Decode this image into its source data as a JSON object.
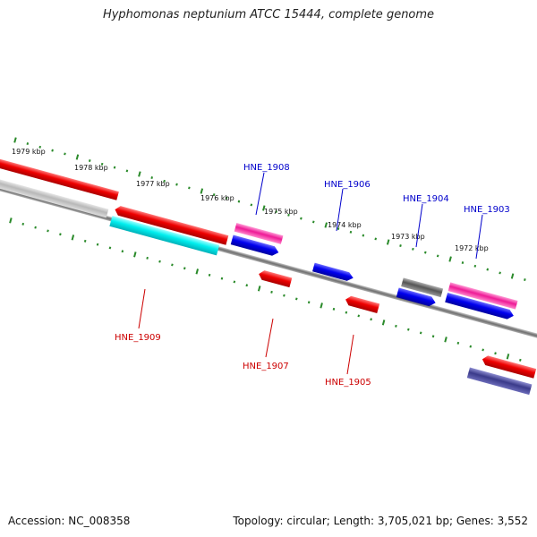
{
  "header": {
    "title": "Hyphomonas neptunium ATCC 15444, complete genome"
  },
  "footer": {
    "accession": "Accession: NC_008358",
    "summary": "Topology: circular; Length: 3,705,021 bp; Genes: 3,552"
  },
  "colors": {
    "forward_label": "#0000cc",
    "reverse_label": "#cc0000",
    "tick": "#2a8a2a",
    "backbone": "#808080"
  },
  "kbp_labels": [
    "1979 kbp",
    "1978 kbp",
    "1977 kbp",
    "1976 kbp",
    "1975 kbp",
    "1974 kbp",
    "1973 kbp",
    "1972 kbp"
  ],
  "genes": [
    {
      "id": "HNE_1909",
      "strand": "reverse"
    },
    {
      "id": "HNE_1908",
      "strand": "forward"
    },
    {
      "id": "HNE_1907",
      "strand": "reverse"
    },
    {
      "id": "HNE_1906",
      "strand": "forward"
    },
    {
      "id": "HNE_1905",
      "strand": "reverse"
    },
    {
      "id": "HNE_1904",
      "strand": "forward"
    },
    {
      "id": "HNE_1903",
      "strand": "forward"
    }
  ]
}
